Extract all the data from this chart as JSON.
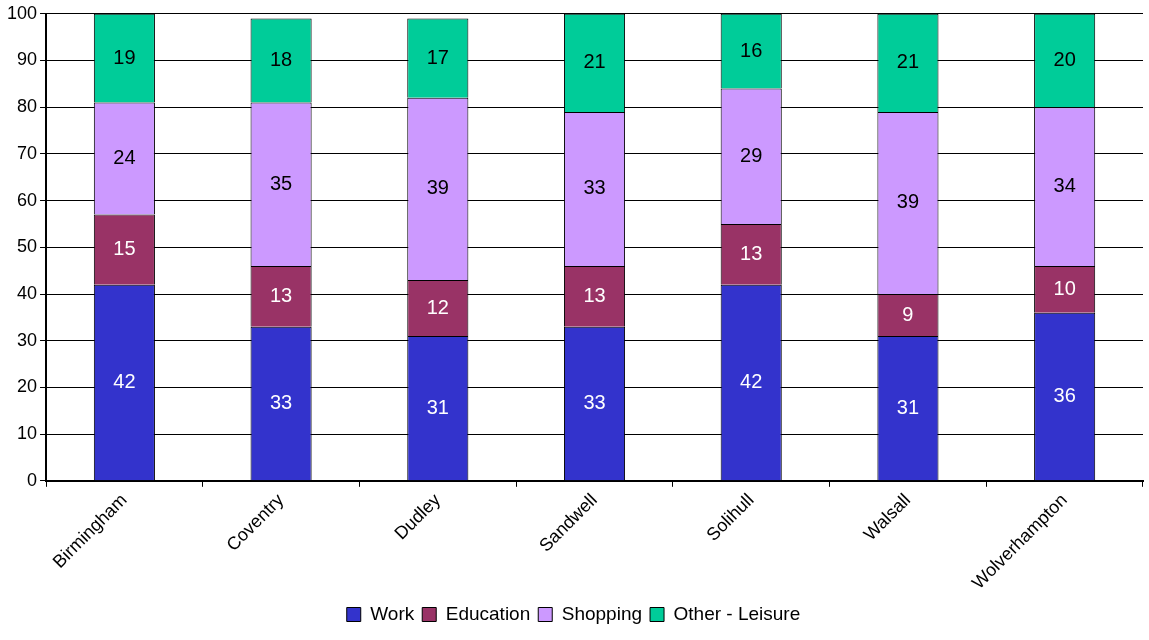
{
  "chart_data": {
    "type": "bar",
    "stacked": true,
    "categories": [
      "Birmingham",
      "Coventry",
      "Dudley",
      "Sandwell",
      "Solihull",
      "Walsall",
      "Wolverhampton"
    ],
    "series": [
      {
        "name": "Work",
        "color": "#3333cc",
        "values": [
          42,
          33,
          31,
          33,
          42,
          31,
          36
        ]
      },
      {
        "name": "Education",
        "color": "#993366",
        "values": [
          15,
          13,
          12,
          13,
          13,
          9,
          10
        ]
      },
      {
        "name": "Shopping",
        "color": "#cc99ff",
        "values": [
          24,
          35,
          39,
          33,
          29,
          39,
          34
        ]
      },
      {
        "name": "Other - Leisure",
        "color": "#00cc99",
        "values": [
          19,
          18,
          17,
          21,
          16,
          21,
          20
        ]
      }
    ],
    "ylim": [
      0,
      100
    ],
    "yticks": [
      0,
      10,
      20,
      30,
      40,
      50,
      60,
      70,
      80,
      90,
      100
    ],
    "grid": "y",
    "legend": "bottom",
    "data_labels": true
  }
}
